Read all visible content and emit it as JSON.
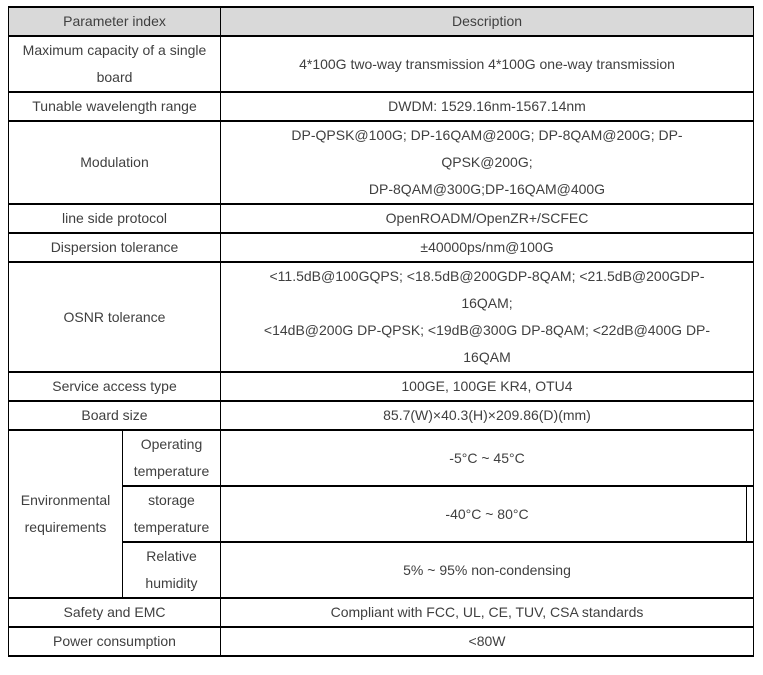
{
  "colors": {
    "page_bg": "#ffffff",
    "header_bg": "#d9d9d9",
    "border": "#000000",
    "text": "#3f3f3f"
  },
  "table": {
    "header": {
      "param": "Parameter index",
      "desc": "Description"
    },
    "rows": [
      {
        "param": [
          "Maximum capacity of a single",
          "board"
        ],
        "desc": [
          "4*100G two-way transmission 4*100G one-way transmission"
        ]
      },
      {
        "param": [
          "Tunable wavelength range"
        ],
        "desc": [
          "DWDM: 1529.16nm-1567.14nm"
        ]
      },
      {
        "param": [
          "Modulation"
        ],
        "desc": [
          "DP-QPSK@100G; DP-16QAM@200G; DP-8QAM@200G; DP-",
          "QPSK@200G;",
          "DP-8QAM@300G;DP-16QAM@400G"
        ]
      },
      {
        "param": [
          "line side protocol"
        ],
        "desc": [
          "OpenROADM/OpenZR+/SCFEC"
        ]
      },
      {
        "param": [
          "Dispersion tolerance"
        ],
        "desc": [
          "±40000ps/nm@100G"
        ]
      },
      {
        "param": [
          "OSNR tolerance"
        ],
        "desc": [
          "<11.5dB@100GQPS; <18.5dB@200GDP-8QAM; <21.5dB@200GDP-",
          "16QAM;",
          "<14dB@200G DP-QPSK; <19dB@300G DP-8QAM; <22dB@400G DP-",
          "16QAM"
        ]
      },
      {
        "param": [
          "Service access type"
        ],
        "desc": [
          "100GE, 100GE KR4, OTU4"
        ]
      },
      {
        "param": [
          "Board size"
        ],
        "desc": [
          "85.7(W)×40.3(H)×209.86(D)(mm)"
        ]
      },
      {
        "group": [
          "Environmental",
          "requirements"
        ],
        "sub": [
          {
            "param": [
              "Operating",
              "temperature"
            ],
            "desc": [
              "-5°C ~ 45°C"
            ]
          },
          {
            "param": [
              "storage",
              "temperature"
            ],
            "desc": [
              "-40°C ~ 80°C"
            ],
            "nested_border": true
          },
          {
            "param": [
              "Relative",
              "humidity"
            ],
            "desc": [
              "5% ~ 95% non-condensing"
            ]
          }
        ]
      },
      {
        "param": [
          "Safety and EMC"
        ],
        "desc": [
          "Compliant with FCC, UL, CE, TUV, CSA standards"
        ]
      },
      {
        "param": [
          "Power consumption"
        ],
        "desc": [
          "<80W"
        ]
      }
    ]
  }
}
